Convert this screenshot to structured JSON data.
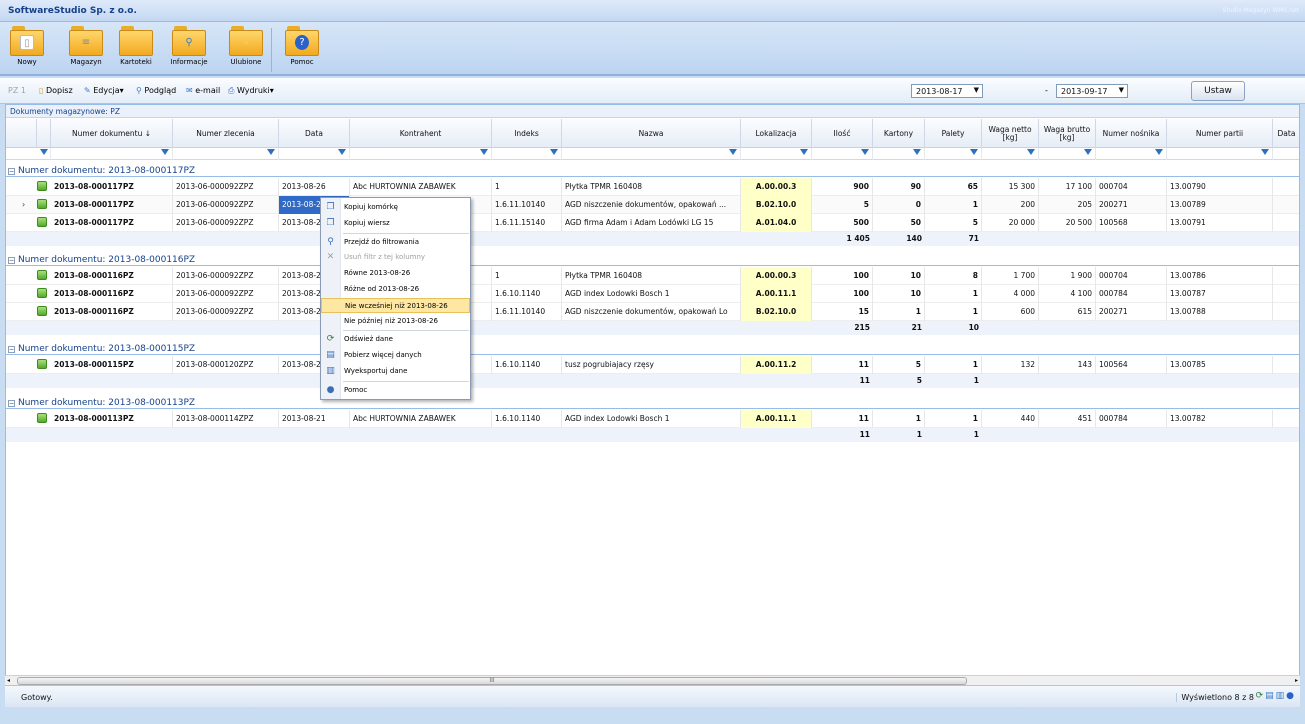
{
  "app": {
    "title": "SoftwareStudio Sp. z o.o.",
    "product": "Studio Magazyn WMS.net"
  },
  "ribbon": [
    {
      "label": "Nowy",
      "icon": "document-icon"
    },
    {
      "label": "Magazyn",
      "icon": "database-folder-icon"
    },
    {
      "label": "Kartoteki",
      "icon": "folder-icon"
    },
    {
      "label": "Informacje",
      "icon": "search-folder-icon"
    },
    {
      "label": "Ulubione",
      "icon": "star-folder-icon"
    },
    {
      "label": "Pomoc",
      "icon": "help-folder-icon"
    }
  ],
  "toolbar": {
    "doc_type": "PZ 1",
    "dopisz": "Dopisz",
    "edycja": "Edycja",
    "podglad": "Podgląd",
    "email": "e-mail",
    "wydruki": "Wydruki",
    "date_from": "2013-08-17",
    "date_sep": "-",
    "date_to": "2013-09-17",
    "ustaw": "Ustaw"
  },
  "grid": {
    "title": "Dokumenty magazynowe: PZ",
    "columns": [
      "Numer dokumentu ↓",
      "Numer zlecenia",
      "Data",
      "Kontrahent",
      "Indeks",
      "Nazwa",
      "Lokalizacja",
      "Ilość",
      "Kartony",
      "Palety",
      "Waga netto [kg]",
      "Waga brutto [kg]",
      "Numer nośnika",
      "Numer partii",
      "Data"
    ],
    "groups": [
      {
        "label": "Numer dokumentu: 2013-08-000117PZ",
        "rows": [
          [
            "2013-08-000117PZ",
            "2013-06-000092ZPZ",
            "2013-08-26",
            "Abc HURTOWNIA ZABAWEK",
            "1",
            "Płytka TPMR 160408",
            "A.00.00.3",
            "900",
            "90",
            "65",
            "15 300",
            "17 100",
            "000704",
            "13.00790"
          ],
          [
            "2013-08-000117PZ",
            "2013-06-000092ZPZ",
            "2013-08-26",
            "",
            "1.6.11.10140",
            "AGD niszczenie dokumentów, opakowań ...",
            "B.02.10.0",
            "5",
            "0",
            "1",
            "200",
            "205",
            "200271",
            "13.00789"
          ],
          [
            "2013-08-000117PZ",
            "2013-06-000092ZPZ",
            "2013-08-2",
            "",
            "1.6.11.15140",
            "AGD firma Adam i Adam Lodówki LG 15",
            "A.01.04.0",
            "500",
            "50",
            "5",
            "20 000",
            "20 500",
            "100568",
            "13.00791"
          ]
        ],
        "sum": {
          "ilosc": "1 405",
          "kartony": "140",
          "palety": "71"
        }
      },
      {
        "label": "Numer dokumentu: 2013-08-000116PZ",
        "rows": [
          [
            "2013-08-000116PZ",
            "2013-06-000092ZPZ",
            "2013-08-2",
            "",
            "1",
            "Płytka TPMR 160408",
            "A.00.00.3",
            "100",
            "10",
            "8",
            "1 700",
            "1 900",
            "000704",
            "13.00786"
          ],
          [
            "2013-08-000116PZ",
            "2013-06-000092ZPZ",
            "2013-08-2",
            "",
            "1.6.10.1140",
            "AGD index Lodowki Bosch 1",
            "A.00.11.1",
            "100",
            "10",
            "1",
            "4 000",
            "4 100",
            "000784",
            "13.00787"
          ],
          [
            "2013-08-000116PZ",
            "2013-06-000092ZPZ",
            "2013-08-2",
            "",
            "1.6.11.10140",
            "AGD niszczenie dokumentów, opakowań Lo",
            "B.02.10.0",
            "15",
            "1",
            "1",
            "600",
            "615",
            "200271",
            "13.00788"
          ]
        ],
        "sum": {
          "ilosc": "215",
          "kartony": "21",
          "palety": "10"
        }
      },
      {
        "label": "Numer dokumentu: 2013-08-000115PZ",
        "rows": [
          [
            "2013-08-000115PZ",
            "2013-08-000120ZPZ",
            "2013-08-2",
            "",
            "1.6.10.1140",
            "tusz pogrubiajacy rzęsy",
            "A.00.11.2",
            "11",
            "5",
            "1",
            "132",
            "143",
            "100564",
            "13.00785"
          ]
        ],
        "sum": {
          "ilosc": "11",
          "kartony": "5",
          "palety": "1"
        }
      },
      {
        "label": "Numer dokumentu: 2013-08-000113PZ",
        "rows": [
          [
            "2013-08-000113PZ",
            "2013-08-000114ZPZ",
            "2013-08-21",
            "Abc HURTOWNIA ZABAWEK",
            "1.6.10.1140",
            "AGD index Lodowki Bosch 1",
            "A.00.11.1",
            "11",
            "1",
            "1",
            "440",
            "451",
            "000784",
            "13.00782"
          ]
        ],
        "sum": {
          "ilosc": "11",
          "kartony": "1",
          "palety": "1"
        }
      }
    ]
  },
  "context_menu": [
    {
      "label": "Kopiuj komórkę",
      "icon": "copy-cell-icon",
      "enabled": true
    },
    {
      "label": "Kopiuj wiersz",
      "icon": "copy-row-icon",
      "enabled": true
    },
    {
      "sep": true
    },
    {
      "label": "Przejdź do filtrowania",
      "icon": "filter-icon",
      "enabled": true
    },
    {
      "label": "Usuń filtr z tej kolumny",
      "icon": "remove-filter-icon",
      "enabled": false
    },
    {
      "label": "Równe 2013-08-26",
      "enabled": true
    },
    {
      "label": "Różne od 2013-08-26",
      "enabled": true
    },
    {
      "label": "Nie wcześniej niż 2013-08-26",
      "enabled": true,
      "active": true
    },
    {
      "label": "Nie później niż 2013-08-26",
      "enabled": true
    },
    {
      "sep": true
    },
    {
      "label": "Odśwież dane",
      "icon": "refresh-icon",
      "enabled": true
    },
    {
      "label": "Pobierz więcej danych",
      "icon": "download-icon",
      "enabled": true
    },
    {
      "label": "Wyeksportuj dane",
      "icon": "export-icon",
      "enabled": true
    },
    {
      "sep": true
    },
    {
      "label": "Pomoc",
      "icon": "help-icon",
      "enabled": true
    }
  ],
  "hscroll_grip": "III",
  "statusbar": {
    "text": "Gotowy.",
    "records": "Wyświetlono 8 z 8"
  },
  "colors": {
    "accent": "#15428b",
    "selection": "#3169c6",
    "location_bg": "#ffffc8",
    "menu_active": "#fde7a2"
  }
}
